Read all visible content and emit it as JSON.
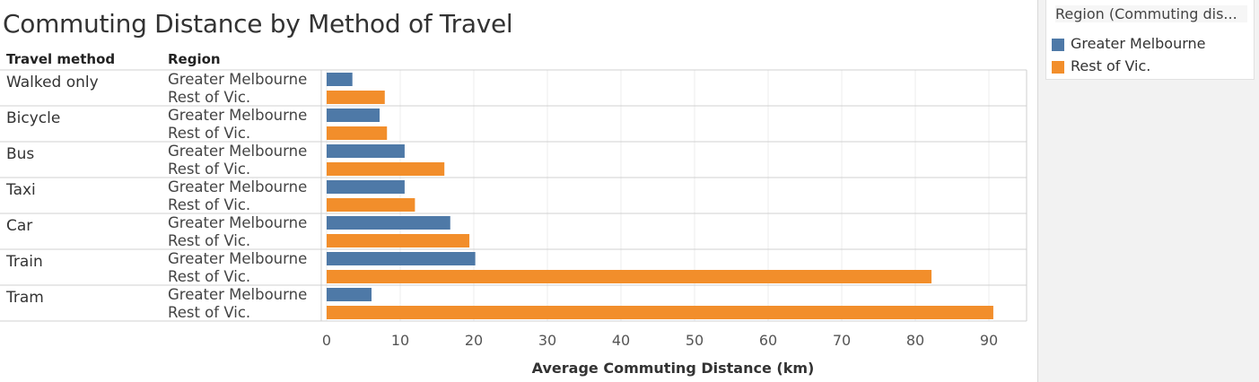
{
  "title": "Commuting Distance by Method of Travel",
  "headers": {
    "method": "Travel method",
    "region": "Region"
  },
  "legend": {
    "title": "Region (Commuting dis...",
    "items": [
      {
        "label": "Greater Melbourne",
        "color": "#4e79a7"
      },
      {
        "label": "Rest of Vic.",
        "color": "#f28e2b"
      }
    ]
  },
  "chart_data": {
    "type": "bar",
    "orientation": "horizontal",
    "title": "Commuting Distance by Method of Travel",
    "xlabel": "Average Commuting Distance (km)",
    "xlim": [
      0,
      95
    ],
    "xticks": [
      0,
      10,
      20,
      30,
      40,
      50,
      60,
      70,
      80,
      90
    ],
    "categories": [
      "Walked only",
      "Bicycle",
      "Bus",
      "Taxi",
      "Car",
      "Train",
      "Tram"
    ],
    "series": [
      {
        "name": "Greater Melbourne",
        "color": "#4e79a7",
        "values": [
          3.5,
          7.2,
          10.6,
          10.6,
          16.8,
          20.2,
          6.1
        ]
      },
      {
        "name": "Rest of Vic.",
        "color": "#f28e2b",
        "values": [
          7.9,
          8.2,
          16.0,
          12.0,
          19.4,
          82.2,
          90.6
        ]
      }
    ],
    "grid": true,
    "legend_position": "right"
  }
}
